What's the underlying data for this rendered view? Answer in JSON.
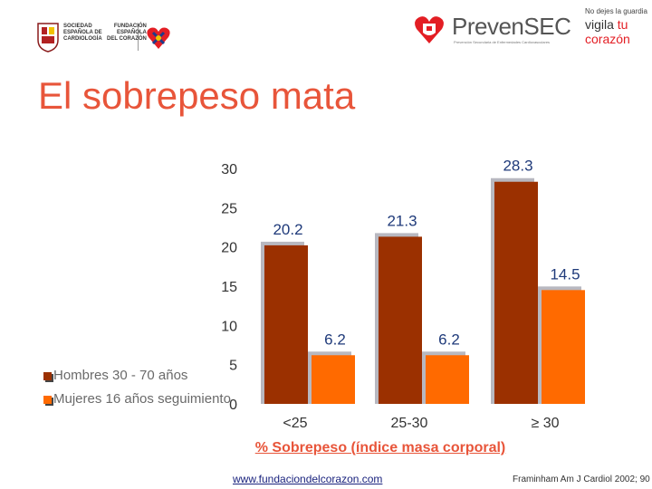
{
  "header": {
    "sec_logo_lines": [
      "SOCIEDAD",
      "ESPAÑOLA DE",
      "CARDIOLOGÍA"
    ],
    "fund_logo_lines": [
      "FUNDACIÓN",
      "ESPAÑOLA",
      "DEL CORAZÓN"
    ],
    "prevensec_name": "PrevenSEC",
    "prevensec_sub": "Prevención Secundaria de Enfermedades Cardiovasculares",
    "tagline_small": "No dejes la guardia",
    "tagline_part1": "vigila",
    "tagline_part2": "tu",
    "tagline_part3": "corazón"
  },
  "title": "El sobrepeso mata",
  "legend": {
    "men": "Hombres 30 - 70 años",
    "women": "Mujeres 16 años seguimiento"
  },
  "x_axis_title": "% Sobrepeso (índice masa corporal)",
  "footer": {
    "url": "www.fundaciondelcorazon.com",
    "source": "Framinham Am J Cardiol 2002; 90"
  },
  "colors": {
    "men": "#9b3000",
    "women": "#ff6a00",
    "title": "#e8553a",
    "shadow": "#b8b8c0"
  },
  "chart_data": {
    "type": "bar",
    "categories": [
      "<25",
      "25-30",
      "≥ 30"
    ],
    "series": [
      {
        "name": "Hombres 30 - 70 años",
        "values": [
          20.2,
          21.3,
          28.3
        ]
      },
      {
        "name": "Mujeres 16 años seguimiento",
        "values": [
          6.2,
          6.2,
          14.5
        ]
      }
    ],
    "value_labels": [
      "20.2",
      "21.3",
      "28.3",
      "6.2",
      "6.2",
      "14.5"
    ],
    "ylim": [
      0,
      30
    ],
    "yticks": [
      "0",
      "5",
      "10",
      "15",
      "20",
      "25",
      "30"
    ],
    "xlabel": "% Sobrepeso (índice masa corporal)",
    "legend_position": "left",
    "grid": false
  }
}
